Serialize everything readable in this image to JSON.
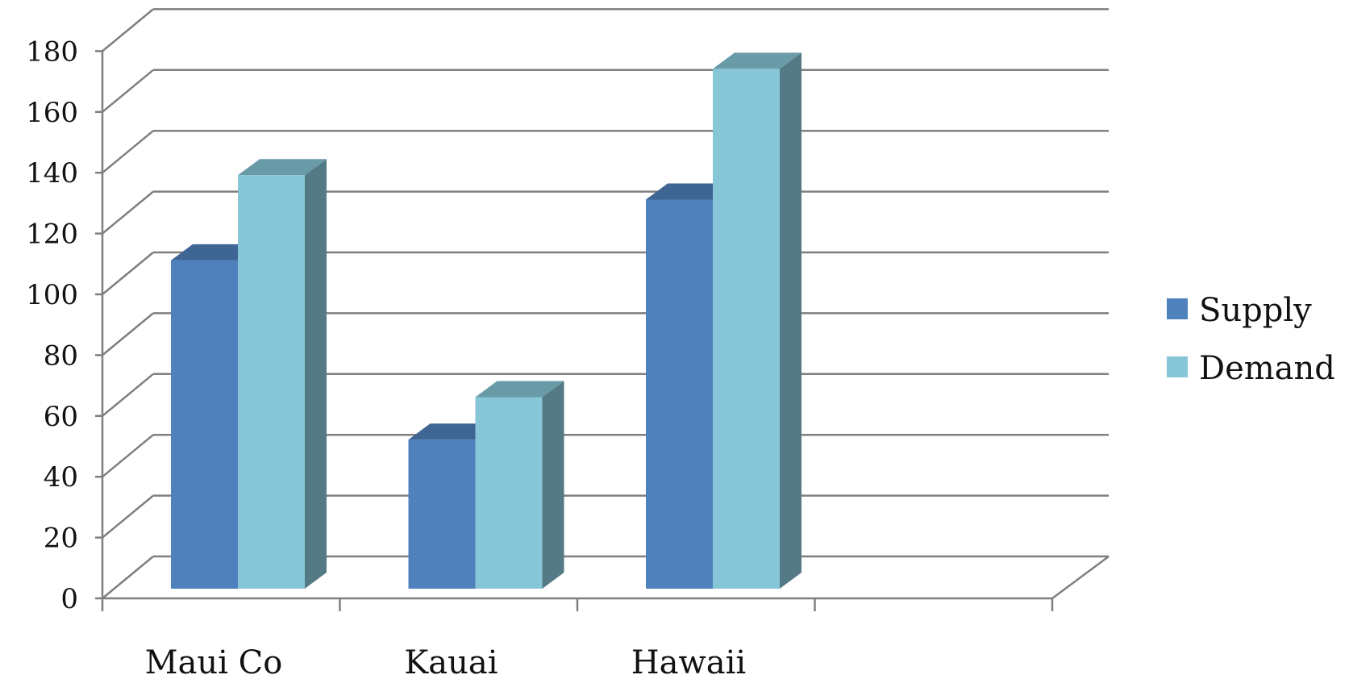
{
  "chart_data": {
    "type": "bar",
    "title": "",
    "xlabel": "",
    "ylabel": "",
    "categories": [
      "Maui Co",
      "Kauai",
      "Hawaii"
    ],
    "series": [
      {
        "name": "Supply",
        "values": [
          108,
          49,
          128
        ],
        "color": "#4f81bd"
      },
      {
        "name": "Demand",
        "values": [
          136,
          63,
          171
        ],
        "color": "#87c6d7"
      }
    ],
    "ylim": [
      0,
      180
    ],
    "yticks": [
      "0",
      "20",
      "40",
      "60",
      "80",
      "100",
      "120",
      "140",
      "160",
      "180"
    ],
    "grid": true,
    "legend_position": "right",
    "style": "3d-column"
  }
}
